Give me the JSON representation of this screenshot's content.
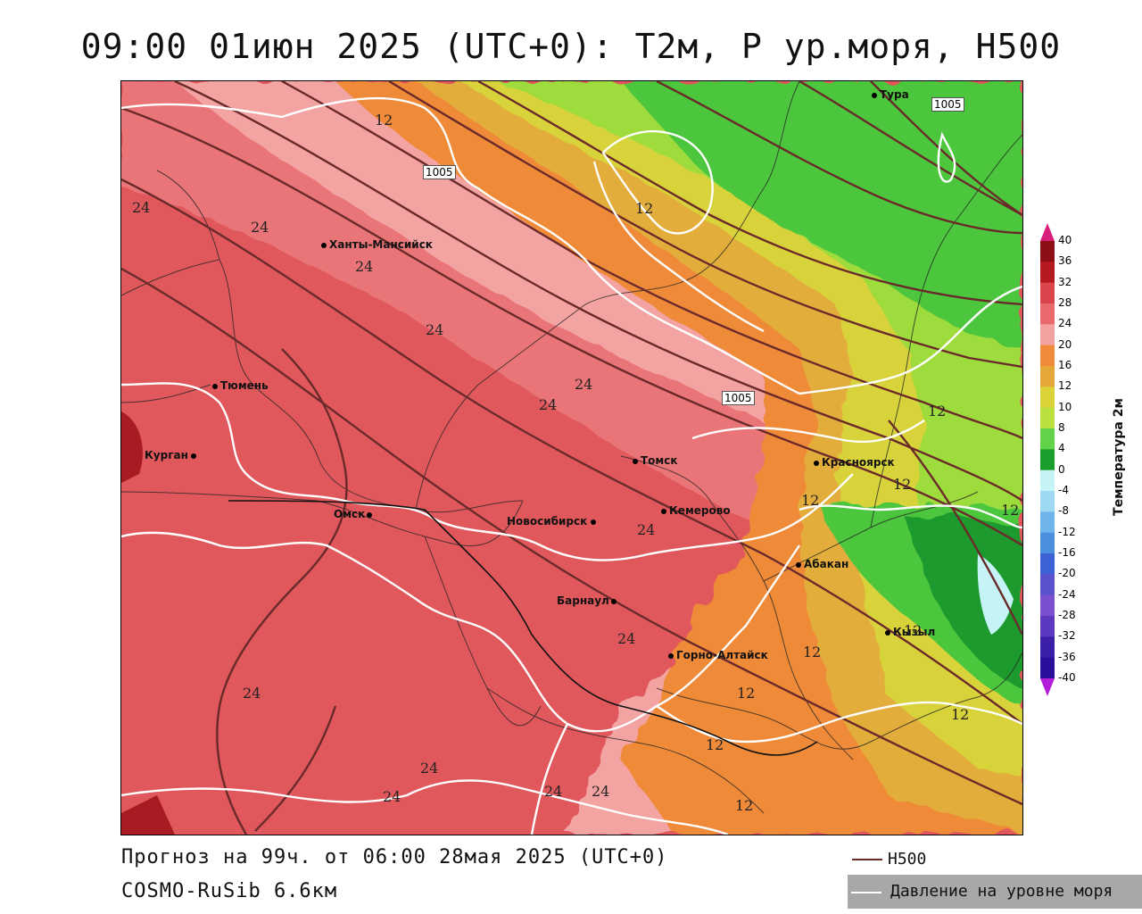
{
  "title": "09:00 01июн 2025 (UTC+0): T2м, P ур.моря, H500",
  "footer": {
    "forecast": "Прогноз на 99ч. от 06:00 28мая 2025 (UTC+0)",
    "model": "COSMO-RuSib 6.6км"
  },
  "legend": {
    "h500": "H500",
    "pressure": "Давление на уровне моря",
    "h500_color": "#6b2a2a",
    "pressure_color": "#ffffff"
  },
  "colorbar": {
    "title": "Температура 2м",
    "ticks": [
      "40",
      "36",
      "32",
      "28",
      "24",
      "20",
      "16",
      "12",
      "10",
      "8",
      "4",
      "0",
      "-4",
      "-8",
      "-12",
      "-16",
      "-20",
      "-24",
      "-28",
      "-32",
      "-36",
      "-40"
    ],
    "colors": [
      "#8b0f14",
      "#b51a20",
      "#d9454a",
      "#e9686c",
      "#f3a0a0",
      "#f08a3a",
      "#e5a838",
      "#dcd33a",
      "#b9e03c",
      "#62d24a",
      "#1a9e2c",
      "#c6f4f6",
      "#9fd8f2",
      "#6fb5ec",
      "#4b8fe0",
      "#3d62d6",
      "#5a52cc",
      "#7a4fd0",
      "#5d39c0",
      "#3b1fa8",
      "#2a0f9a"
    ]
  },
  "cities": [
    {
      "name": "Тура"
    },
    {
      "name": "Ханты-Мансийск"
    },
    {
      "name": "Тюмень"
    },
    {
      "name": "Курган"
    },
    {
      "name": "Омск"
    },
    {
      "name": "Новосибирск"
    },
    {
      "name": "Томск"
    },
    {
      "name": "Кемерово"
    },
    {
      "name": "Красноярск"
    },
    {
      "name": "Абакан"
    },
    {
      "name": "Барнаул"
    },
    {
      "name": "Горно-Алтайск"
    },
    {
      "name": "Кызыл"
    }
  ],
  "contour_labels": {
    "temperature": [
      "12",
      "24",
      "24",
      "24",
      "24",
      "24",
      "24",
      "24",
      "12",
      "12",
      "12",
      "12",
      "12",
      "12",
      "12",
      "24",
      "24",
      "24",
      "24",
      "24",
      "12",
      "12",
      "12",
      "12",
      "24"
    ],
    "pressure": [
      "1005",
      "1005",
      "1005"
    ]
  }
}
